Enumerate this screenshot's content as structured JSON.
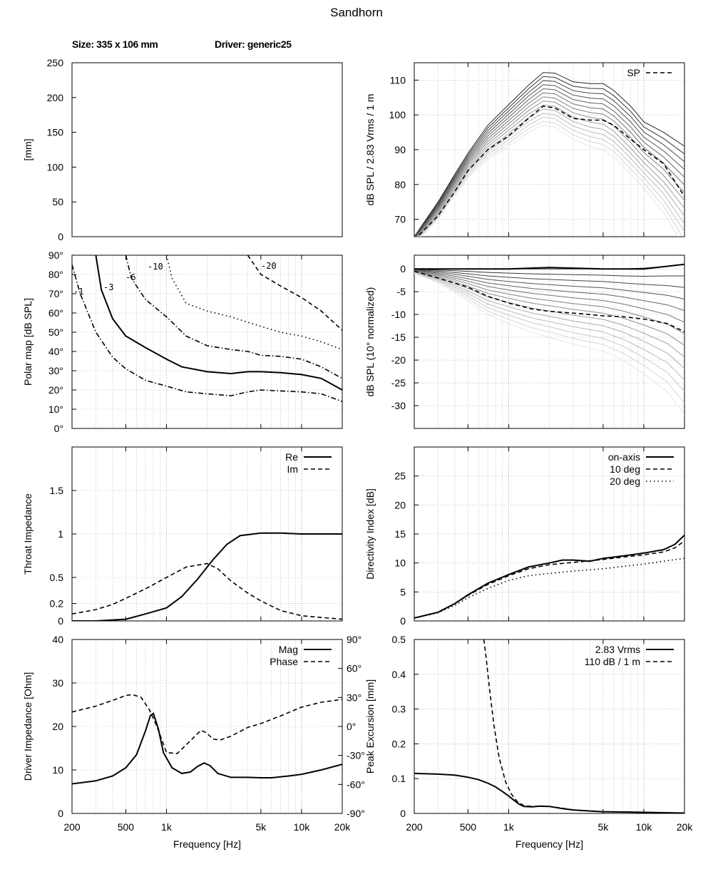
{
  "title": "Sandhorn",
  "info": {
    "size": "Size: 335 x 106 mm",
    "driver": "Driver: generic25"
  },
  "colors": {
    "ink": "#000000",
    "grid": "#a0a0a0",
    "frame": "#000000"
  },
  "chart_data": [
    {
      "id": "profile",
      "type": "line",
      "xlabel": "",
      "ylabel": "[mm]",
      "xlim": [
        0,
        100
      ],
      "ylim": [
        0,
        250
      ],
      "yticks": [
        0,
        50,
        100,
        150,
        200,
        250
      ],
      "grid": false,
      "series": [
        {
          "style": "dashdot",
          "x": [
            0,
            27
          ],
          "y": [
            0,
            0
          ]
        }
      ]
    },
    {
      "id": "spl",
      "type": "line",
      "xscale": "log",
      "xlim": [
        200,
        20000
      ],
      "ylim": [
        65,
        115
      ],
      "yticks": [
        70,
        80,
        90,
        100,
        110
      ],
      "ylabel": "dB SPL / 2.83 Vrms / 1 m",
      "grid": true,
      "legend": "top-right",
      "series": [
        {
          "name": "SP",
          "style": "dashed",
          "x": [
            200,
            300,
            400,
            500,
            700,
            1000,
            1400,
            1800,
            2200,
            3000,
            4000,
            5000,
            6000,
            8000,
            10000,
            14000,
            20000
          ],
          "y": [
            64,
            71,
            78,
            84,
            90,
            94,
            99,
            102.5,
            102,
            99,
            98.5,
            98.5,
            97,
            93,
            90,
            86,
            76.5
          ]
        }
      ],
      "fan_upper": {
        "x": [
          200,
          300,
          400,
          500,
          700,
          1000,
          1400,
          1800,
          2200,
          3000,
          4000,
          5000,
          6000,
          8000,
          10000,
          14000,
          20000
        ],
        "y": [
          65,
          75,
          83,
          89,
          97,
          103,
          108.5,
          112.2,
          112,
          109.5,
          109,
          109,
          107,
          102.5,
          98,
          95,
          91
        ]
      },
      "fan_lower": {
        "x": [
          200,
          300,
          400,
          500,
          700,
          1000,
          1400,
          1800,
          2200,
          3000,
          4000,
          5000,
          6000,
          8000,
          10000,
          14000,
          20000
        ],
        "y": [
          63,
          70,
          77,
          82,
          87,
          91,
          95,
          97,
          96.5,
          93,
          91,
          90,
          88,
          83,
          79,
          72,
          62
        ]
      }
    },
    {
      "id": "polar",
      "type": "contour",
      "xscale": "log",
      "xlim": [
        200,
        20000
      ],
      "ylim": [
        0,
        90
      ],
      "ylabel": "Polar map [dB SPL]",
      "yticks": [
        0,
        10,
        20,
        30,
        40,
        50,
        60,
        70,
        80,
        90
      ],
      "ytick_labels": [
        "0°",
        "10°",
        "20°",
        "30°",
        "40°",
        "50°",
        "60°",
        "70°",
        "80°",
        "90°"
      ],
      "grid": true,
      "series": [
        {
          "name": "-1",
          "style": "dashdot",
          "x": [
            200,
            230,
            300,
            400,
            500,
            700,
            1000,
            1400,
            2000,
            3000,
            4000,
            5000,
            7000,
            10000,
            14000,
            20000
          ],
          "y": [
            85,
            70,
            50,
            37,
            31,
            25,
            22,
            19,
            18,
            17,
            19,
            20,
            19.5,
            19,
            18,
            14
          ]
        },
        {
          "name": "-3",
          "style": "solid",
          "x": [
            300,
            330,
            400,
            500,
            700,
            1000,
            1300,
            2000,
            3000,
            4000,
            5000,
            7000,
            10000,
            14000,
            20000
          ],
          "y": [
            90,
            72,
            57,
            48,
            42,
            36,
            32,
            29.5,
            28.5,
            29.5,
            29.5,
            29,
            28,
            26,
            20
          ]
        },
        {
          "name": "-6",
          "style": "dashdot",
          "x": [
            500,
            550,
            700,
            1000,
            1400,
            2000,
            3000,
            4000,
            5000,
            7000,
            10000,
            14000,
            20000
          ],
          "y": [
            90,
            78,
            67,
            58,
            48,
            43,
            41,
            40,
            38,
            37.5,
            36,
            32,
            26
          ]
        },
        {
          "name": "-10",
          "style": "dotted",
          "x": [
            1000,
            1100,
            1400,
            2000,
            3000,
            5000,
            7000,
            10000,
            14000,
            20000
          ],
          "y": [
            90,
            78,
            65,
            61,
            58,
            53,
            50,
            48,
            45,
            41
          ]
        },
        {
          "name": "-20",
          "style": "dashed",
          "x": [
            4000,
            5000,
            7000,
            10000,
            14000,
            20000
          ],
          "y": [
            90,
            80,
            74,
            68,
            61,
            51
          ]
        }
      ]
    },
    {
      "id": "spl_norm",
      "type": "line",
      "xscale": "log",
      "xlim": [
        200,
        20000
      ],
      "ylim": [
        -35,
        3
      ],
      "yticks": [
        -30,
        -25,
        -20,
        -15,
        -10,
        -5,
        0
      ],
      "ylabel": "dB SPL (10° normalized)",
      "grid": true,
      "series": [
        {
          "name": "on-axis",
          "style": "solid",
          "x": [
            200,
            1000,
            2000,
            5000,
            10000,
            20000
          ],
          "y": [
            0,
            0,
            0.3,
            0,
            0,
            1
          ]
        },
        {
          "name": "SP",
          "style": "dashed",
          "x": [
            200,
            300,
            500,
            700,
            1000,
            1500,
            2000,
            3000,
            5000,
            7000,
            10000,
            15000,
            20000
          ],
          "y": [
            -0.5,
            -2,
            -4,
            -6,
            -7.5,
            -8.8,
            -9.3,
            -9.7,
            -10.3,
            -10.5,
            -11,
            -12,
            -13.8
          ]
        }
      ],
      "fan_lower": {
        "x": [
          200,
          300,
          500,
          700,
          1000,
          1500,
          2000,
          3000,
          5000,
          7000,
          10000,
          15000,
          20000
        ],
        "y": [
          -1,
          -3,
          -7,
          -10,
          -12,
          -14,
          -15,
          -16.5,
          -18,
          -20,
          -23,
          -27,
          -32
        ]
      }
    },
    {
      "id": "throat",
      "type": "line",
      "xscale": "log",
      "xlim": [
        200,
        20000
      ],
      "ylim": [
        0,
        2
      ],
      "yticks": [
        0,
        0.2,
        0.5,
        1,
        1.5
      ],
      "ylabel": "Throat Impedance",
      "grid": true,
      "legend": "top-right",
      "series": [
        {
          "name": "Re",
          "style": "solid",
          "x": [
            200,
            300,
            500,
            700,
            1000,
            1300,
            1700,
            2200,
            2800,
            3500,
            5000,
            7000,
            10000,
            14000,
            20000
          ],
          "y": [
            0,
            0,
            0.02,
            0.08,
            0.15,
            0.28,
            0.48,
            0.7,
            0.88,
            0.98,
            1.01,
            1.01,
            1,
            1,
            1
          ]
        },
        {
          "name": "Im",
          "style": "dashed",
          "x": [
            200,
            300,
            400,
            500,
            700,
            1000,
            1400,
            2000,
            2400,
            3000,
            4000,
            5000,
            7000,
            10000,
            14000,
            20000
          ],
          "y": [
            0.08,
            0.13,
            0.19,
            0.26,
            0.37,
            0.5,
            0.62,
            0.66,
            0.6,
            0.46,
            0.32,
            0.23,
            0.12,
            0.06,
            0.04,
            0.02
          ]
        }
      ]
    },
    {
      "id": "di",
      "type": "line",
      "xscale": "log",
      "xlim": [
        200,
        20000
      ],
      "ylim": [
        0,
        30
      ],
      "yticks": [
        0,
        5,
        10,
        15,
        20,
        25
      ],
      "ylabel": "Directivity Index [dB]",
      "grid": true,
      "legend": "top-right",
      "series": [
        {
          "name": "on-axis",
          "style": "solid",
          "x": [
            200,
            300,
            400,
            500,
            700,
            1000,
            1400,
            2000,
            2500,
            3000,
            4000,
            5000,
            7000,
            10000,
            14000,
            17000,
            20000
          ],
          "y": [
            0.5,
            1.5,
            3,
            4.5,
            6.5,
            8,
            9.3,
            10,
            10.5,
            10.5,
            10.3,
            10.8,
            11.2,
            11.7,
            12.3,
            13.2,
            14.8
          ]
        },
        {
          "name": "10 deg",
          "style": "dashed",
          "x": [
            200,
            300,
            400,
            500,
            700,
            1000,
            1400,
            2000,
            3000,
            5000,
            7000,
            10000,
            14000,
            17000,
            20000
          ],
          "y": [
            0.5,
            1.5,
            3,
            4.4,
            6.3,
            7.8,
            9,
            9.7,
            10.1,
            10.6,
            11,
            11.4,
            11.9,
            12.6,
            13.8
          ]
        },
        {
          "name": "20 deg",
          "style": "dotted",
          "x": [
            200,
            300,
            400,
            500,
            700,
            1000,
            1400,
            2000,
            3000,
            5000,
            7000,
            10000,
            14000,
            20000
          ],
          "y": [
            0.5,
            1.4,
            2.7,
            4,
            5.6,
            7,
            7.8,
            8.2,
            8.6,
            9,
            9.4,
            9.8,
            10.3,
            10.8
          ]
        }
      ]
    },
    {
      "id": "driver_z",
      "type": "line",
      "xscale": "log",
      "xlim": [
        200,
        20000
      ],
      "ylim": [
        0,
        40
      ],
      "yticks": [
        0,
        10,
        20,
        30,
        40
      ],
      "ylabel": "Driver Impedance [Ohm]",
      "y2lim": [
        -90,
        90
      ],
      "y2ticks": [
        -90,
        -60,
        -30,
        0,
        30,
        60,
        90
      ],
      "y2tick_labels": [
        "-90°",
        "-60°",
        "-30°",
        "0°",
        "30°",
        "60°",
        "90°"
      ],
      "grid": true,
      "legend": "top-right",
      "series": [
        {
          "name": "Mag",
          "style": "solid",
          "axis": "y",
          "x": [
            200,
            300,
            400,
            500,
            600,
            700,
            760,
            800,
            870,
            950,
            1100,
            1300,
            1500,
            1700,
            1900,
            2100,
            2400,
            3000,
            4000,
            5000,
            6000,
            8000,
            10000,
            14000,
            20000
          ],
          "y": [
            6.8,
            7.5,
            8.6,
            10.5,
            13.5,
            19,
            22.5,
            23,
            19.5,
            14,
            10.5,
            9.2,
            9.5,
            10.8,
            11.6,
            11,
            9.2,
            8.3,
            8.3,
            8.2,
            8.2,
            8.6,
            9,
            10,
            11.3
          ]
        },
        {
          "name": "Phase",
          "style": "dashed",
          "axis": "y2",
          "x": [
            200,
            300,
            400,
            500,
            560,
            650,
            750,
            850,
            1000,
            1200,
            1500,
            1800,
            2000,
            2200,
            2500,
            3000,
            4000,
            5000,
            7000,
            10000,
            14000,
            20000
          ],
          "y": [
            15,
            21,
            27,
            32,
            33,
            30,
            17,
            0,
            -27,
            -28,
            -15,
            -4,
            -7,
            -13,
            -14,
            -10,
            -1,
            3,
            11,
            20,
            25,
            28
          ]
        }
      ]
    },
    {
      "id": "excursion",
      "type": "line",
      "xscale": "log",
      "xlim": [
        200,
        20000
      ],
      "ylim": [
        0,
        0.5
      ],
      "yticks": [
        0,
        0.1,
        0.2,
        0.3,
        0.4,
        0.5
      ],
      "ylabel": "Peak Excursion [mm]",
      "grid": true,
      "legend": "top-right",
      "series": [
        {
          "name": "2.83 Vrms",
          "style": "solid",
          "x": [
            200,
            300,
            400,
            500,
            600,
            700,
            800,
            900,
            1000,
            1100,
            1200,
            1300,
            1500,
            1700,
            2000,
            2500,
            3000,
            4000,
            5000,
            7000,
            10000,
            14000,
            20000
          ],
          "y": [
            0.115,
            0.113,
            0.11,
            0.104,
            0.097,
            0.087,
            0.076,
            0.063,
            0.05,
            0.037,
            0.026,
            0.02,
            0.019,
            0.021,
            0.02,
            0.014,
            0.01,
            0.007,
            0.005,
            0.004,
            0.003,
            0.002,
            0.001
          ]
        },
        {
          "name": "110 dB / 1 m",
          "style": "dashed",
          "x": [
            655,
            680,
            720,
            780,
            850,
            950,
            1050,
            1150,
            1300,
            1500,
            2000,
            2500,
            3000,
            4000,
            5000,
            7000,
            10000,
            14000,
            20000
          ],
          "y": [
            0.5,
            0.45,
            0.36,
            0.25,
            0.16,
            0.09,
            0.055,
            0.035,
            0.022,
            0.02,
            0.02,
            0.015,
            0.01,
            0.007,
            0.005,
            0.004,
            0.003,
            0.002,
            0.001
          ]
        }
      ]
    }
  ],
  "xaxis": {
    "ticks": [
      200,
      500,
      1000,
      5000,
      10000,
      20000
    ],
    "tick_labels": [
      "200",
      "500",
      "1k",
      "5k",
      "10k",
      "20k"
    ],
    "label": "Frequency [Hz]"
  }
}
